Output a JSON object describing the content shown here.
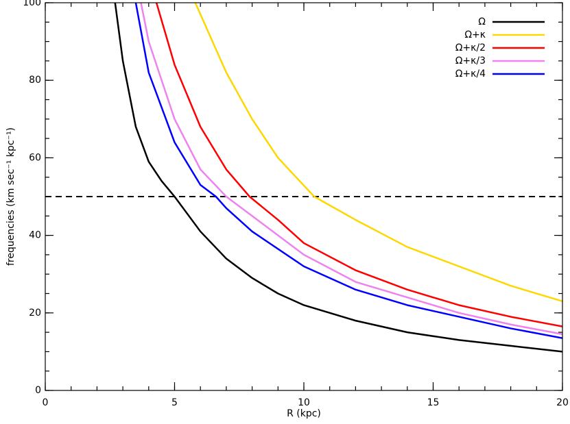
{
  "chart_data": {
    "type": "line",
    "xlabel": "R (kpc)",
    "ylabel": "frequencies (km sec⁻¹ kpc⁻¹)",
    "xlim": [
      0,
      20
    ],
    "ylim": [
      0,
      100
    ],
    "xticks": [
      0,
      5,
      10,
      15,
      20
    ],
    "yticks": [
      0,
      20,
      40,
      60,
      80,
      100
    ],
    "xminor": 1,
    "yminor": 5,
    "hline": 50,
    "legend": "upper right",
    "series": [
      {
        "name": "Ω",
        "color": "#000000",
        "x": [
          2.7,
          3,
          3.5,
          4,
          4.5,
          5,
          6,
          7,
          8,
          9,
          10,
          12,
          14,
          16,
          18,
          20
        ],
        "values": [
          100,
          85,
          68,
          59,
          54,
          50,
          41,
          34,
          29,
          25,
          22,
          18,
          15,
          13,
          11.5,
          10
        ]
      },
      {
        "name": "Ω+κ",
        "color": "#ffd700",
        "x": [
          5.8,
          7,
          8,
          9,
          10.4,
          12,
          14,
          16,
          18,
          20
        ],
        "values": [
          100,
          82,
          70,
          60,
          50,
          44,
          37,
          32,
          27,
          23
        ]
      },
      {
        "name": "Ω+κ/2",
        "color": "#ff0000",
        "x": [
          4.3,
          5,
          6,
          7,
          7.9,
          9,
          10,
          12,
          14,
          16,
          18,
          20
        ],
        "values": [
          100,
          84,
          68,
          57,
          50,
          44,
          38,
          31,
          26,
          22,
          19,
          16.5
        ]
      },
      {
        "name": "Ω+κ/3",
        "color": "#ee82ee",
        "x": [
          3.7,
          4,
          5,
          6,
          7,
          8,
          10,
          12,
          14,
          16,
          18,
          20
        ],
        "values": [
          100,
          90,
          70,
          57,
          50,
          45,
          35,
          28,
          24,
          20,
          17,
          14.5
        ]
      },
      {
        "name": "Ω+κ/4",
        "color": "#0000ff",
        "x": [
          3.5,
          4,
          5,
          6,
          6.6,
          7,
          8,
          10,
          12,
          14,
          16,
          18,
          20
        ],
        "values": [
          100,
          82,
          64,
          53,
          50,
          47,
          41,
          32,
          26,
          22,
          19,
          16,
          13.5
        ]
      }
    ]
  }
}
